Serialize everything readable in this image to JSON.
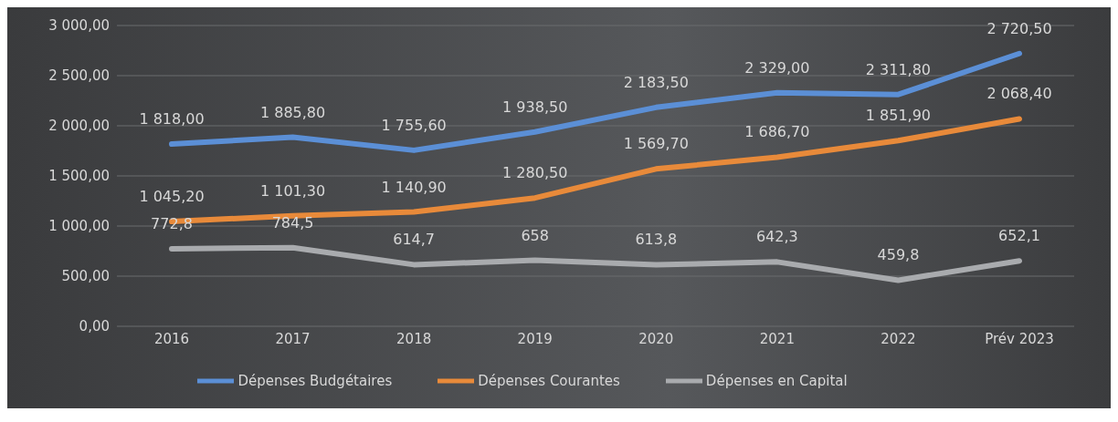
{
  "chart_data": {
    "type": "line",
    "categories": [
      "2016",
      "2017",
      "2018",
      "2019",
      "2020",
      "2021",
      "2022",
      "Prév 2023"
    ],
    "series": [
      {
        "name": "Dépenses Budgétaires",
        "color": "#5b8fd6",
        "values": [
          1818.0,
          1885.8,
          1755.6,
          1938.5,
          2183.5,
          2329.0,
          2311.8,
          2720.5
        ],
        "value_labels": [
          "1 818,00",
          "1 885,80",
          "1 755,60",
          "1 938,50",
          "2 183,50",
          "2 329,00",
          "2 311,80",
          "2 720,50"
        ]
      },
      {
        "name": "Dépenses Courantes",
        "color": "#e88a3a",
        "values": [
          1045.2,
          1101.3,
          1140.9,
          1280.5,
          1569.7,
          1686.7,
          1851.9,
          2068.4
        ],
        "value_labels": [
          "1 045,20",
          "1 101,30",
          "1 140,90",
          "1 280,50",
          "1 569,70",
          "1 686,70",
          "1 851,90",
          "2 068,40"
        ]
      },
      {
        "name": "Dépenses en Capital",
        "color": "#a9abae",
        "values": [
          772.8,
          784.5,
          614.7,
          658,
          613.8,
          642.3,
          459.8,
          652.1
        ],
        "value_labels": [
          "772,8",
          "784,5",
          "614,7",
          "658",
          "613,8",
          "642,3",
          "459,8",
          "652,1"
        ]
      }
    ],
    "ylim": [
      0,
      3000
    ],
    "yticks": [
      {
        "value": 0,
        "label": "0,00"
      },
      {
        "value": 500,
        "label": "500,00"
      },
      {
        "value": 1000,
        "label": "1 000,00"
      },
      {
        "value": 1500,
        "label": "1 500,00"
      },
      {
        "value": 2000,
        "label": "2 000,00"
      },
      {
        "value": 2500,
        "label": "2 500,00"
      },
      {
        "value": 3000,
        "label": "3 000,00"
      }
    ],
    "grid": "y",
    "legend": "bottom",
    "marker": "none",
    "line_style": "solid"
  }
}
